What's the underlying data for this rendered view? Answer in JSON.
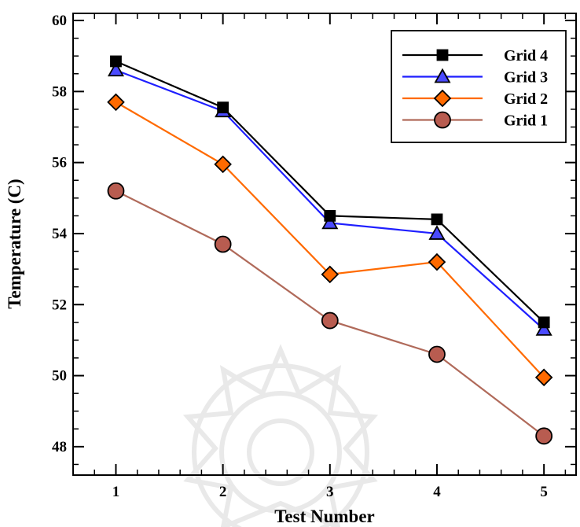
{
  "chart_data": {
    "type": "line",
    "xlabel": "Test Number",
    "ylabel": "Temperature (C)",
    "x": [
      1,
      2,
      3,
      4,
      5
    ],
    "xlim": [
      0.6,
      5.3
    ],
    "ylim": [
      47.2,
      60.2
    ],
    "xticks": [
      1,
      2,
      3,
      4,
      5
    ],
    "yticks": [
      48,
      50,
      52,
      54,
      56,
      58,
      60
    ],
    "grid": false,
    "legend_position": "top-right",
    "series": [
      {
        "name": "Grid 4",
        "marker": "square",
        "color": "#000000",
        "fill": "#000000",
        "values": [
          58.85,
          57.55,
          54.5,
          54.4,
          51.5
        ]
      },
      {
        "name": "Grid 3",
        "marker": "triangle",
        "color": "#1f1fff",
        "fill": "#4a4aff",
        "values": [
          58.6,
          57.45,
          54.3,
          54.0,
          51.3
        ]
      },
      {
        "name": "Grid 2",
        "marker": "diamond",
        "color": "#ff6a00",
        "fill": "#ff6a00",
        "values": [
          57.7,
          55.95,
          52.85,
          53.2,
          49.95
        ]
      },
      {
        "name": "Grid 1",
        "marker": "circle",
        "color": "#b06a5a",
        "fill": "#b85c50",
        "values": [
          55.2,
          53.7,
          51.55,
          50.6,
          48.3
        ]
      }
    ]
  }
}
